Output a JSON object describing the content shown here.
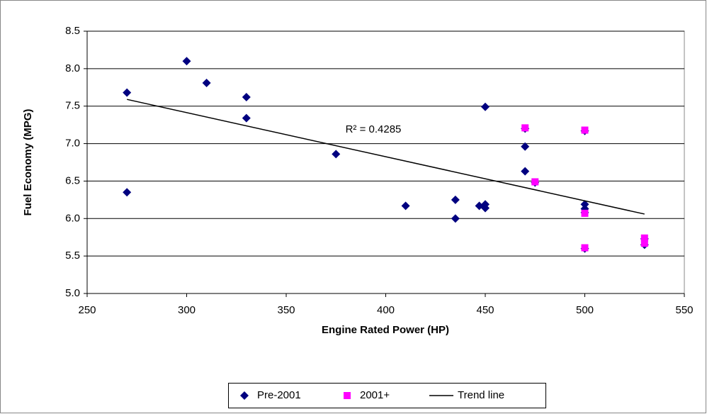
{
  "chart_data": {
    "type": "scatter",
    "x_label": "Engine Rated Power (HP)",
    "y_label": "Fuel Economy (MPG)",
    "annotation": "R² = 0.4285",
    "xlim": [
      250,
      550
    ],
    "xticks": [
      250,
      300,
      350,
      400,
      450,
      500,
      550
    ],
    "ylim": [
      5,
      8.5
    ],
    "yticks": [
      {
        "value": 5,
        "label": "5.0"
      },
      5.5,
      {
        "value": 6,
        "label": "6.0"
      },
      6.5,
      {
        "value": 7,
        "label": "7.0"
      },
      7.5,
      {
        "value": 8,
        "label": "8.0"
      },
      8.5
    ],
    "grid": true,
    "legend": "bottom",
    "series": [
      {
        "name": "Pre-2001",
        "color": "#000080",
        "marker": "diamond",
        "x": [
          270,
          270,
          300,
          310,
          330,
          330,
          375,
          410,
          435,
          435,
          447,
          450,
          450,
          450,
          470,
          470,
          470,
          475,
          500,
          500,
          500,
          500,
          500,
          530,
          530
        ],
        "values": [
          7.68,
          6.35,
          8.1,
          7.81,
          7.62,
          7.34,
          6.86,
          6.17,
          6.25,
          6.0,
          6.17,
          6.19,
          6.14,
          7.49,
          7.2,
          6.96,
          6.63,
          6.48,
          7.17,
          6.19,
          6.13,
          6.08,
          5.6,
          5.73,
          5.65
        ]
      },
      {
        "name": "2001+",
        "color": "#ff00ff",
        "marker": "square",
        "x": [
          470,
          475,
          500,
          500,
          500,
          530,
          530
        ],
        "values": [
          7.21,
          6.49,
          7.18,
          6.07,
          5.61,
          5.74,
          5.67
        ]
      },
      {
        "name": "Trend line",
        "color": "#000000",
        "type": "line",
        "x": [
          270,
          530
        ],
        "values": [
          7.59,
          6.06
        ]
      }
    ]
  }
}
